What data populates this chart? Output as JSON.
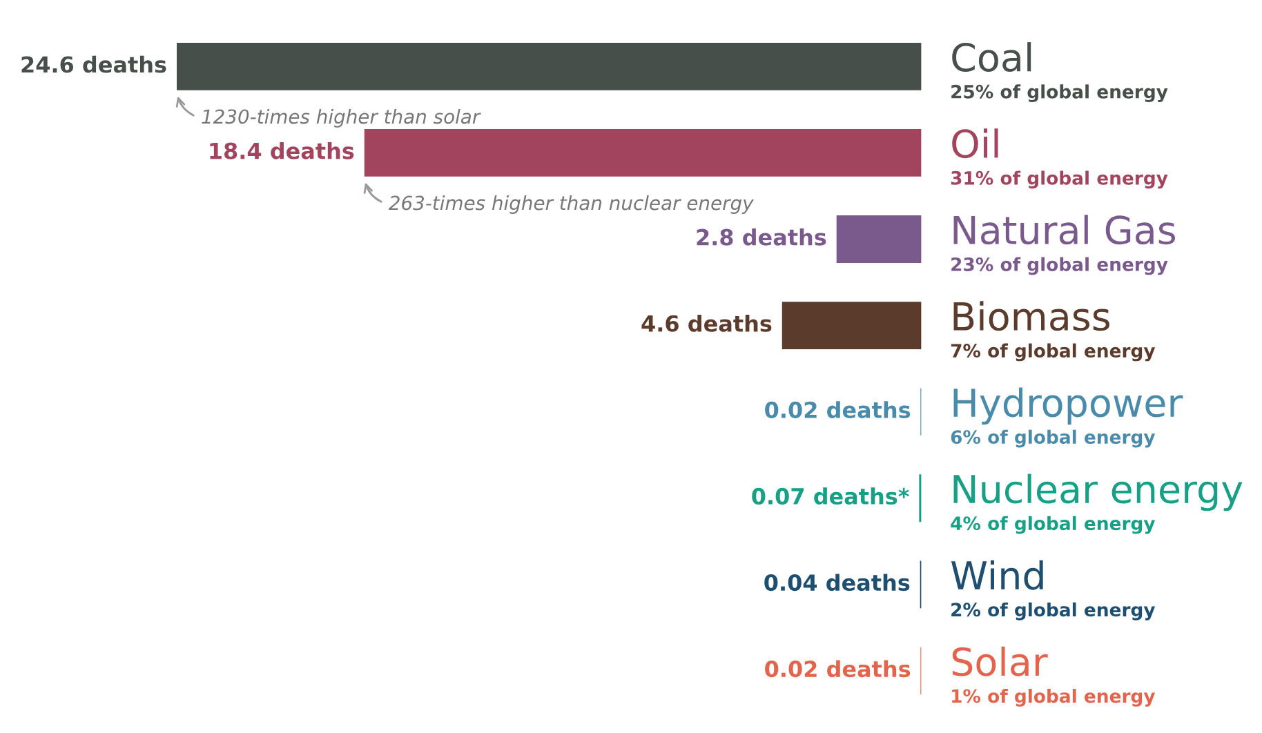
{
  "chart_data": {
    "type": "bar",
    "orientation": "horizontal",
    "categories": [
      "Coal",
      "Oil",
      "Natural Gas",
      "Biomass",
      "Hydropower",
      "Nuclear energy",
      "Wind",
      "Solar"
    ],
    "values": [
      24.6,
      18.4,
      2.8,
      4.6,
      0.02,
      0.07,
      0.04,
      0.02
    ],
    "colors": [
      "#474f4a",
      "#a3445f",
      "#7a5a8c",
      "#5b3b2b",
      "#4a8aaa",
      "#17a085",
      "#1f4f70",
      "#e2644c"
    ],
    "value_labels": [
      "24.6 deaths",
      "18.4 deaths",
      "2.8 deaths",
      "4.6 deaths",
      "0.02 deaths",
      "0.07 deaths*",
      "0.04 deaths",
      "0.02 deaths"
    ],
    "annotations": [
      "1230-times higher than solar",
      "263-times higher than nuclear energy",
      "25% of global energy",
      "31% of global energy",
      "23% of global energy",
      "7% of global energy",
      "6% of global energy",
      "4% of global energy",
      "2% of global energy",
      "1% of global energy"
    ],
    "legend": false
  }
}
